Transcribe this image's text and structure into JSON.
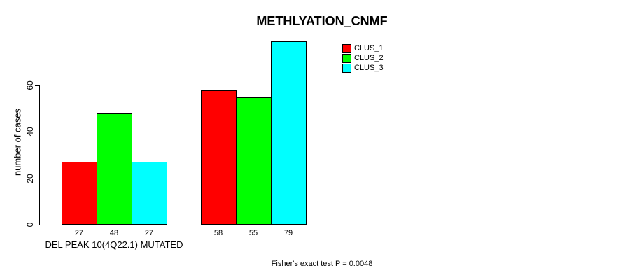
{
  "chart_data": {
    "type": "bar",
    "title": "METHLYATION_CNMF",
    "ylabel": "number of cases",
    "xlabel": "DEL PEAK 10(4Q22.1) MUTATED",
    "yticks": [
      0,
      20,
      40,
      60
    ],
    "ylim": [
      0,
      60
    ],
    "grid": false,
    "bar_value_labels_shown": true,
    "legend_position": "top-right",
    "n_groups": 2,
    "series": [
      {
        "name": "CLUS_1",
        "color": "#ff0000",
        "values": [
          27,
          58
        ]
      },
      {
        "name": "CLUS_2",
        "color": "#00ff00",
        "values": [
          48,
          55
        ]
      },
      {
        "name": "CLUS_3",
        "color": "#00ffff",
        "values": [
          27,
          79
        ]
      }
    ],
    "annotation": "Fisher's exact test P = 0.0048"
  }
}
